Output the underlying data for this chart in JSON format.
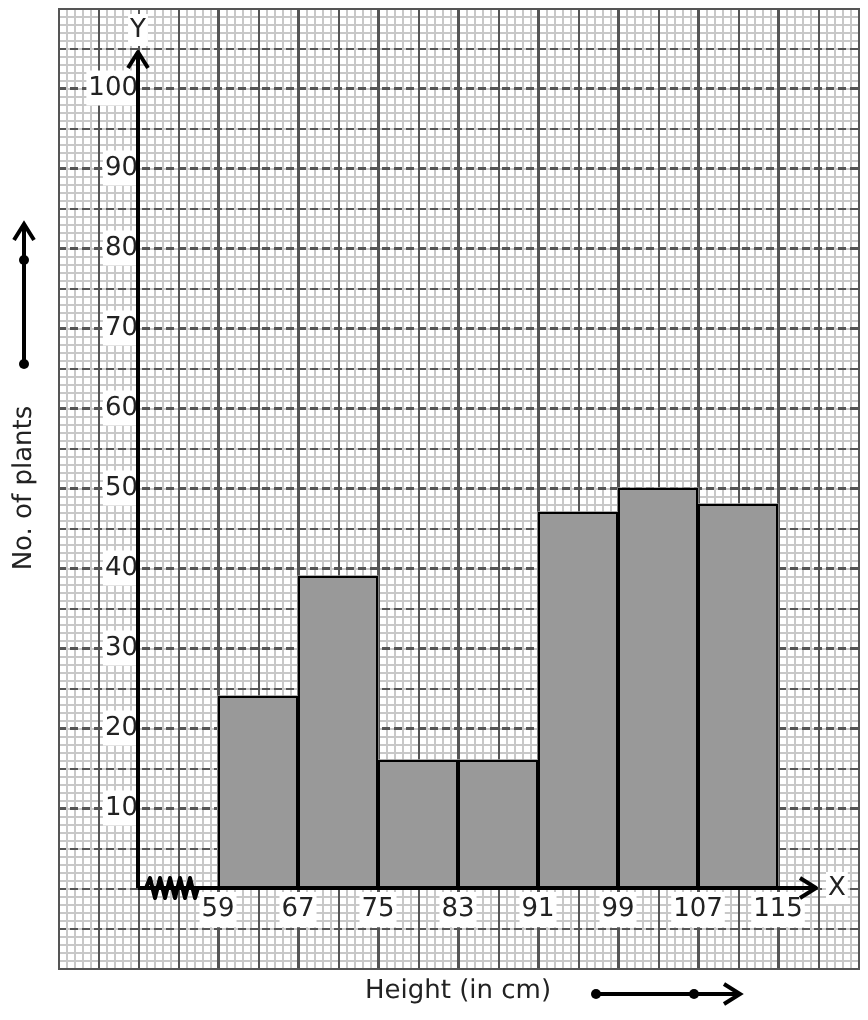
{
  "chart_data": {
    "type": "histogram",
    "xlabel": "Height (in cm)",
    "ylabel": "No. of plants",
    "annotations": [
      "X",
      "Y"
    ],
    "bins": [
      59,
      67,
      75,
      83,
      91,
      99,
      107,
      115
    ],
    "values": [
      24,
      39,
      16,
      16,
      47,
      50,
      48
    ],
    "color": "#999999",
    "xlim": [
      43,
      123
    ],
    "ylim": [
      -10,
      110
    ],
    "xticks": [
      59,
      67,
      75,
      83,
      91,
      99,
      107,
      115
    ],
    "yticks": [
      10,
      20,
      30,
      40,
      50,
      60,
      70,
      80,
      90,
      100
    ],
    "grid": true,
    "legend": false
  }
}
